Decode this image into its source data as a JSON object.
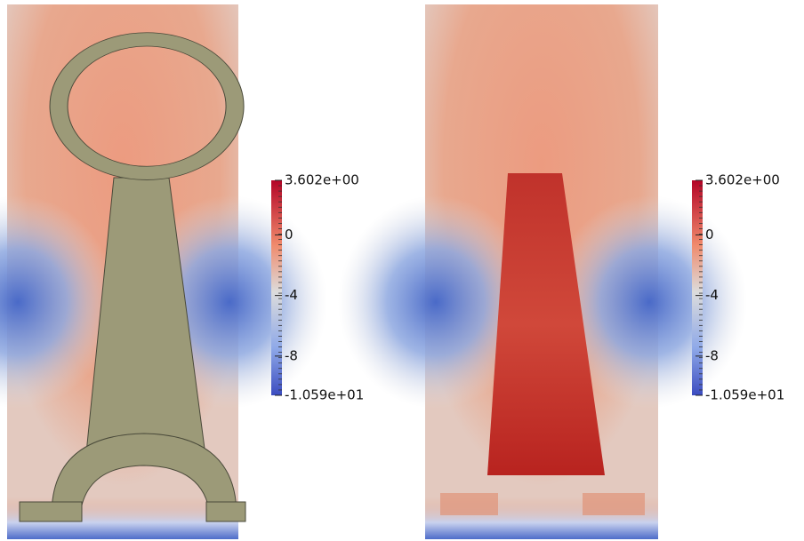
{
  "panels": [
    {
      "colorbar": {
        "clim": [
          -10.59,
          3.602
        ],
        "ticks": [
          {
            "value": 3.602,
            "label": "3.602e+00"
          },
          0,
          -4,
          -8,
          {
            "value": -10.59,
            "label": "-1.059e+01"
          }
        ]
      }
    },
    {
      "colorbar": {
        "clim": [
          -10.59,
          3.602
        ],
        "ticks": [
          {
            "value": 3.602,
            "label": "3.602e+00"
          },
          0,
          -4,
          -8,
          {
            "value": -10.59,
            "label": "-1.059e+01"
          }
        ]
      }
    }
  ]
}
